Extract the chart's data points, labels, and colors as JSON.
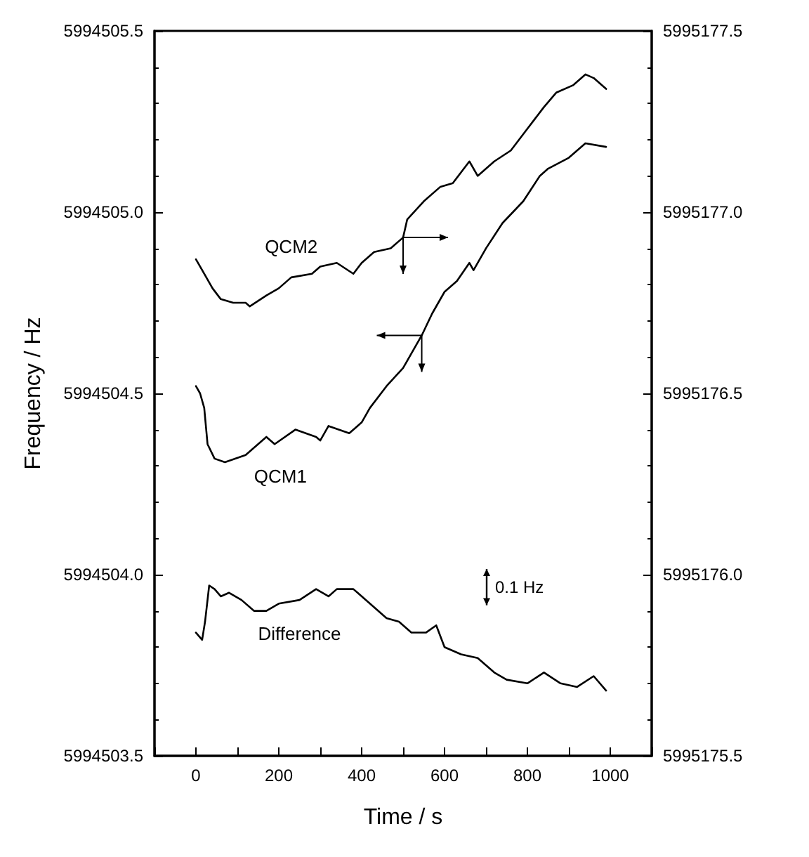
{
  "chart_data": {
    "type": "line",
    "xlabel": "Time / s",
    "ylabel": "Frequency / Hz",
    "xlim": [
      -100,
      1100
    ],
    "xticks": [
      0,
      200,
      400,
      600,
      800,
      1000
    ],
    "ylim": [
      5994503.5,
      5994505.5
    ],
    "yticks": [
      {
        "value": 5994503.5,
        "label": "5994503.5"
      },
      {
        "value": 5994504,
        "label": "5994504.0"
      },
      {
        "value": 5994504.5,
        "label": "5994504.5"
      },
      {
        "value": 5994505,
        "label": "5994505.0"
      },
      {
        "value": 5994505.5,
        "label": "5994505.5"
      }
    ],
    "y2lim": [
      5995175.5,
      5995177.5
    ],
    "y2ticks": [
      {
        "value": 5995175.5,
        "label": "5995175.5"
      },
      {
        "value": 5995176,
        "label": "5995176.0"
      },
      {
        "value": 5995176.5,
        "label": "5995176.5"
      },
      {
        "value": 5995177,
        "label": "5995177.0"
      },
      {
        "value": 5995177.5,
        "label": "5995177.5"
      }
    ],
    "grid": false,
    "legend": false,
    "marker": "none",
    "line_style": "solid",
    "annotations": [
      "0.1 Hz"
    ],
    "series": [
      {
        "name": "QCM2",
        "color": "#000000",
        "axis": "y2",
        "x": [
          0,
          20,
          40,
          60,
          90,
          120,
          130,
          170,
          200,
          230,
          280,
          300,
          340,
          380,
          400,
          430,
          470,
          500,
          510,
          550,
          590,
          620,
          660,
          680,
          720,
          760,
          800,
          840,
          870,
          910,
          940,
          960,
          990
        ],
        "values": [
          5995176.87,
          5995176.83,
          5995176.79,
          5995176.76,
          5995176.75,
          5995176.75,
          5995176.74,
          5995176.77,
          5995176.79,
          5995176.82,
          5995176.83,
          5995176.85,
          5995176.86,
          5995176.83,
          5995176.86,
          5995176.89,
          5995176.9,
          5995176.93,
          5995176.98,
          5995177.03,
          5995177.07,
          5995177.08,
          5995177.14,
          5995177.1,
          5995177.14,
          5995177.17,
          5995177.23,
          5995177.29,
          5995177.33,
          5995177.35,
          5995177.38,
          5995177.37,
          5995177.34
        ]
      },
      {
        "name": "QCM1",
        "color": "#000000",
        "x": [
          0,
          10,
          20,
          28,
          45,
          70,
          120,
          170,
          190,
          240,
          290,
          300,
          320,
          370,
          400,
          420,
          460,
          500,
          530,
          545,
          570,
          600,
          630,
          660,
          670,
          700,
          740,
          790,
          830,
          850,
          900,
          940,
          990
        ],
        "values": [
          5994504.52,
          5994504.5,
          5994504.46,
          5994504.36,
          5994504.32,
          5994504.31,
          5994504.33,
          5994504.38,
          5994504.36,
          5994504.4,
          5994504.38,
          5994504.37,
          5994504.41,
          5994504.39,
          5994504.42,
          5994504.46,
          5994504.52,
          5994504.57,
          5994504.63,
          5994504.66,
          5994504.72,
          5994504.78,
          5994504.81,
          5994504.86,
          5994504.84,
          5994504.9,
          5994504.97,
          5994505.03,
          5994505.1,
          5994505.12,
          5994505.15,
          5994505.19,
          5994505.18
        ]
      },
      {
        "name": "Difference",
        "color": "#000000",
        "x": [
          0,
          15,
          22,
          32,
          45,
          60,
          80,
          110,
          140,
          170,
          200,
          250,
          290,
          320,
          340,
          380,
          420,
          460,
          490,
          520,
          555,
          580,
          600,
          640,
          680,
          720,
          750,
          800,
          840,
          880,
          920,
          960,
          990
        ],
        "values": [
          5994503.84,
          5994503.82,
          5994503.87,
          5994503.97,
          5994503.96,
          5994503.94,
          5994503.95,
          5994503.93,
          5994503.9,
          5994503.9,
          5994503.92,
          5994503.93,
          5994503.96,
          5994503.94,
          5994503.96,
          5994503.96,
          5994503.92,
          5994503.88,
          5994503.87,
          5994503.84,
          5994503.84,
          5994503.86,
          5994503.8,
          5994503.78,
          5994503.77,
          5994503.73,
          5994503.71,
          5994503.7,
          5994503.73,
          5994503.7,
          5994503.69,
          5994503.72,
          5994503.68
        ]
      }
    ]
  }
}
